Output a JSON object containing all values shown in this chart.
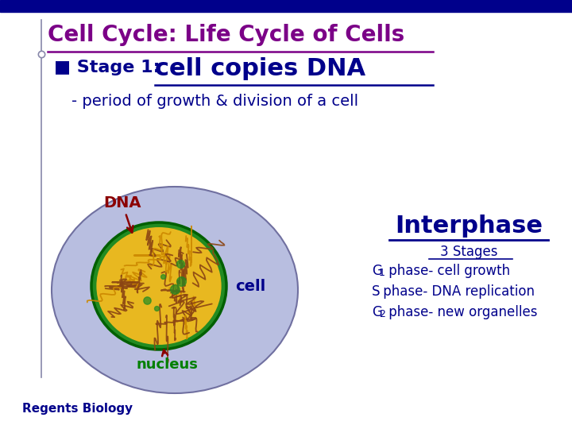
{
  "title": "Cell Cycle: Life Cycle of Cells",
  "title_color": "#7B0087",
  "title_fontsize": 20,
  "subtitle_prefix": "■ Stage 1: ",
  "subtitle_bold": "cell copies DNA",
  "subtitle_color": "#00008B",
  "subtitle_fontsize": 16,
  "subtitle_bold_fontsize": 22,
  "subtext": "- period of growth & division of a cell",
  "subtext_color": "#00008B",
  "subtext_fontsize": 14,
  "dna_label": "DNA",
  "dna_color": "#8B0000",
  "cell_label": "cell",
  "cell_label_color": "#00008B",
  "nucleus_label": "nucleus",
  "nucleus_label_color": "#008000",
  "interphase_title": "Interphase",
  "interphase_color": "#00008B",
  "interphase_fontsize": 22,
  "stages_label": "3 Stages",
  "stages_color": "#00008B",
  "stages_fontsize": 12,
  "phase_lines_raw": [
    "G1 phase- cell growth",
    "S phase- DNA replication",
    "G2 phase- new organelles"
  ],
  "phase_color": "#00008B",
  "phase_fontsize": 12,
  "footer": "Regents Biology",
  "footer_color": "#00008B",
  "footer_fontsize": 11,
  "bg_color": "#FFFFFF",
  "top_bar_color": "#00008B",
  "left_line_color": "#8888AA",
  "cell_ellipse_color": "#B8BEE0",
  "nucleus_outer_color": "#228B22",
  "nucleus_inner_color": "#E8B820",
  "dna_squiggle_color": "#8B4513",
  "dna_squiggle_color2": "#CC8800"
}
